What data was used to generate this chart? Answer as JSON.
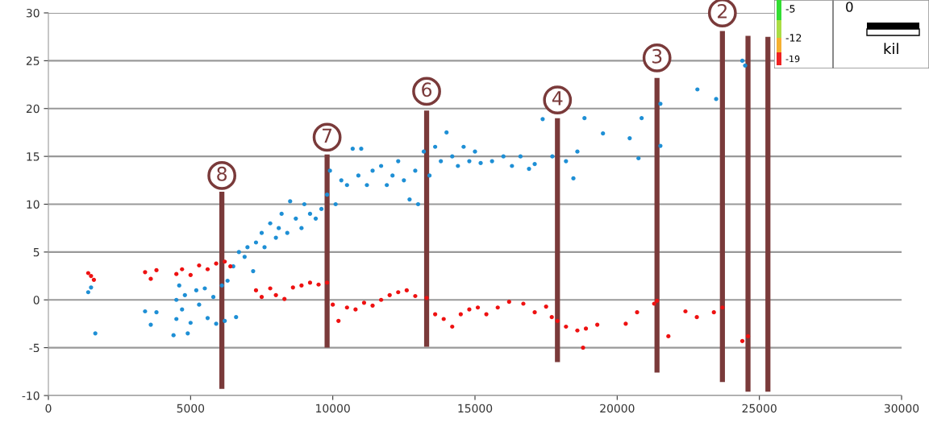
{
  "chart_data": {
    "type": "scatter",
    "xlim": [
      0,
      30000
    ],
    "xticks": [
      0,
      5000,
      10000,
      15000,
      20000,
      25000,
      30000
    ],
    "ylim": [
      -10,
      30
    ],
    "yticks": [
      -10,
      -5,
      0,
      5,
      10,
      15,
      20,
      25,
      30
    ],
    "grid": "y",
    "marker": "circle",
    "series": [
      {
        "color": "#1e8fd5",
        "x": [
          1400,
          1500,
          1650,
          3400,
          3600,
          3800,
          4400,
          4500,
          4500,
          4600,
          4700,
          4800,
          4900,
          5000,
          5200,
          5300,
          5500,
          5600,
          5800,
          5900,
          6100,
          6200,
          6300,
          6500,
          6600,
          6700,
          6900,
          7000,
          7200,
          7300,
          7500,
          7600,
          7800,
          8000,
          8100,
          8200,
          8400,
          8500,
          8700,
          8900,
          9000,
          9200,
          9400,
          9600,
          9800,
          9900,
          10100,
          10300,
          10500,
          10700,
          10900,
          11000,
          11200,
          11400,
          11700,
          11900,
          12100,
          12300,
          12500,
          12700,
          12900,
          13000,
          13200,
          13400,
          13600,
          13800,
          14000,
          14200,
          14400,
          14600,
          14800,
          15000,
          15200,
          15600,
          16000,
          16300,
          16600,
          16900,
          17100,
          17380,
          17720,
          18200,
          18460,
          18600,
          18850,
          19500,
          20440,
          20750,
          20860,
          21520,
          21520,
          22820,
          23480,
          24400,
          24500
        ],
        "values": [
          0.8,
          1.3,
          -3.5,
          -1.2,
          -2.6,
          -1.3,
          -3.7,
          -2,
          0,
          1.5,
          -1,
          0.5,
          -3.5,
          -2.4,
          1,
          -0.5,
          1.2,
          -1.9,
          0.3,
          -2.5,
          1.5,
          -2.2,
          2,
          3.5,
          -1.8,
          5,
          4.5,
          5.5,
          3,
          6,
          7,
          5.5,
          8,
          6.5,
          7.5,
          9,
          7,
          10.3,
          8.5,
          7.5,
          10,
          9,
          8.5,
          9.5,
          11,
          13.5,
          10,
          12.5,
          12,
          15.8,
          13,
          15.8,
          12,
          13.5,
          14,
          12,
          13,
          14.5,
          12.5,
          10.5,
          13.5,
          10,
          15.5,
          13,
          16,
          14.5,
          17.5,
          15,
          14,
          16,
          14.5,
          15.5,
          14.3,
          14.5,
          15,
          14,
          15,
          13.7,
          14.2,
          18.9,
          15,
          14.5,
          12.7,
          15.5,
          19,
          17.4,
          16.9,
          14.8,
          19,
          16.1,
          20.5,
          22,
          21,
          25,
          24.5
        ]
      },
      {
        "color": "#ee1111",
        "x": [
          1400,
          1500,
          1600,
          3400,
          3600,
          3800,
          4500,
          4700,
          5000,
          5300,
          5600,
          5900,
          6200,
          6400,
          7300,
          7500,
          7800,
          8000,
          8300,
          8600,
          8900,
          9200,
          9500,
          9800,
          10000,
          10200,
          10500,
          10800,
          11100,
          11400,
          11700,
          12000,
          12300,
          12600,
          12900,
          13300,
          13600,
          13900,
          14200,
          14500,
          14800,
          15100,
          15400,
          15800,
          16200,
          16700,
          17100,
          17500,
          17700,
          17900,
          18200,
          18600,
          18900,
          18800,
          19300,
          20300,
          20700,
          21300,
          21400,
          21800,
          22400,
          22800,
          23400,
          23700,
          24400,
          24600
        ],
        "values": [
          2.8,
          2.5,
          2.1,
          2.9,
          2.2,
          3.1,
          2.7,
          3.2,
          2.6,
          3.6,
          3.2,
          3.8,
          4,
          3.5,
          1,
          0.3,
          1.2,
          0.5,
          0.1,
          1.3,
          1.5,
          1.8,
          1.6,
          1.8,
          -0.5,
          -2.2,
          -0.8,
          -1,
          -0.3,
          -0.6,
          0,
          0.5,
          0.8,
          1,
          0.4,
          0.2,
          -1.5,
          -2,
          -2.8,
          -1.5,
          -1,
          -0.8,
          -1.5,
          -0.8,
          -0.2,
          -0.4,
          -1.3,
          -0.7,
          -1.8,
          -2.2,
          -2.8,
          -3.2,
          -3,
          -5,
          -2.6,
          -2.5,
          -1.3,
          -0.4,
          -0.1,
          -3.8,
          -1.2,
          -1.8,
          -1.3,
          -0.8,
          -4.3,
          -3.8
        ]
      },
      {
        "type": "line",
        "marker": "none",
        "color": "#7a3a3a",
        "x": [
          6100,
          6100
        ],
        "values": [
          -9.3,
          11.3
        ]
      },
      {
        "type": "line",
        "marker": "none",
        "color": "#7a3a3a",
        "x": [
          9800,
          9800
        ],
        "values": [
          -5,
          15.2
        ]
      },
      {
        "type": "line",
        "marker": "none",
        "color": "#7a3a3a",
        "x": [
          13300,
          13300
        ],
        "values": [
          -4.9,
          19.8
        ]
      },
      {
        "type": "line",
        "marker": "none",
        "color": "#7a3a3a",
        "x": [
          17900,
          17900
        ],
        "values": [
          -6.5,
          19
        ]
      },
      {
        "type": "line",
        "marker": "none",
        "color": "#7a3a3a",
        "x": [
          21400,
          21400
        ],
        "values": [
          -7.6,
          23.2
        ]
      },
      {
        "type": "line",
        "marker": "none",
        "color": "#7a3a3a",
        "x": [
          23700,
          23700
        ],
        "values": [
          -8.6,
          28.1
        ]
      },
      {
        "type": "line",
        "marker": "none",
        "color": "#7a3a3a",
        "x": [
          24600,
          24600
        ],
        "values": [
          -9.6,
          27.6
        ]
      },
      {
        "type": "line",
        "marker": "none",
        "color": "#7a3a3a",
        "x": [
          25300,
          25300
        ],
        "values": [
          -9.6,
          27.5
        ]
      }
    ],
    "annotations": [
      {
        "text": "8",
        "x": 6100,
        "y": 13
      },
      {
        "text": "7",
        "x": 9800,
        "y": 17
      },
      {
        "text": "6",
        "x": 13300,
        "y": 21.8
      },
      {
        "text": "4",
        "x": 17900,
        "y": 20.9
      },
      {
        "text": "3",
        "x": 21400,
        "y": 25.3
      },
      {
        "text": "2",
        "x": 23700,
        "y": 30
      },
      "-5",
      "-12",
      "-19",
      "0",
      "kil"
    ]
  }
}
